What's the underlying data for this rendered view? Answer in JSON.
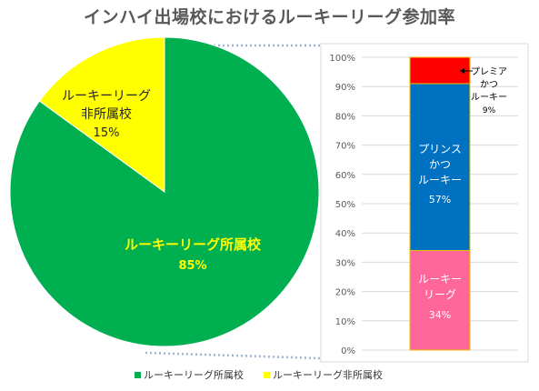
{
  "title": "インハイ出場校におけるルーキーリーグ参加率",
  "chart_data": [
    {
      "type": "pie",
      "slices": [
        {
          "label_lines": [
            "ルーキーリーグ所属校"
          ],
          "value": 85,
          "value_label": "85%",
          "color": "#00b050",
          "text_color": "#ffff00"
        },
        {
          "label_lines": [
            "ルーキーリーグ",
            "非所属校"
          ],
          "value": 15,
          "value_label": "15%",
          "color": "#ffff00",
          "text_color": "#262626"
        }
      ],
      "legend": [
        "ルーキーリーグ所属校",
        "ルーキーリーグ非所属校"
      ],
      "legend_position": "bottom"
    },
    {
      "type": "bar",
      "stacked": true,
      "y_ticks": [
        "0%",
        "10%",
        "20%",
        "30%",
        "40%",
        "50%",
        "60%",
        "70%",
        "80%",
        "90%",
        "100%"
      ],
      "ylim": [
        0,
        100
      ],
      "segments": [
        {
          "label_lines": [
            "ルーキー",
            "リーグ"
          ],
          "value": 34,
          "value_label": "34%",
          "color": "#ff6699",
          "text_color": "#ffffff"
        },
        {
          "label_lines": [
            "プリンス",
            "かつ",
            "ルーキー"
          ],
          "value": 57,
          "value_label": "57%",
          "color": "#0070c0",
          "text_color": "#ffffff"
        },
        {
          "label_lines": [
            "プレミア",
            "かつ",
            "ルーキー"
          ],
          "value": 9,
          "value_label": "9%",
          "color": "#ff0000",
          "text_color": "#000000"
        }
      ]
    }
  ]
}
